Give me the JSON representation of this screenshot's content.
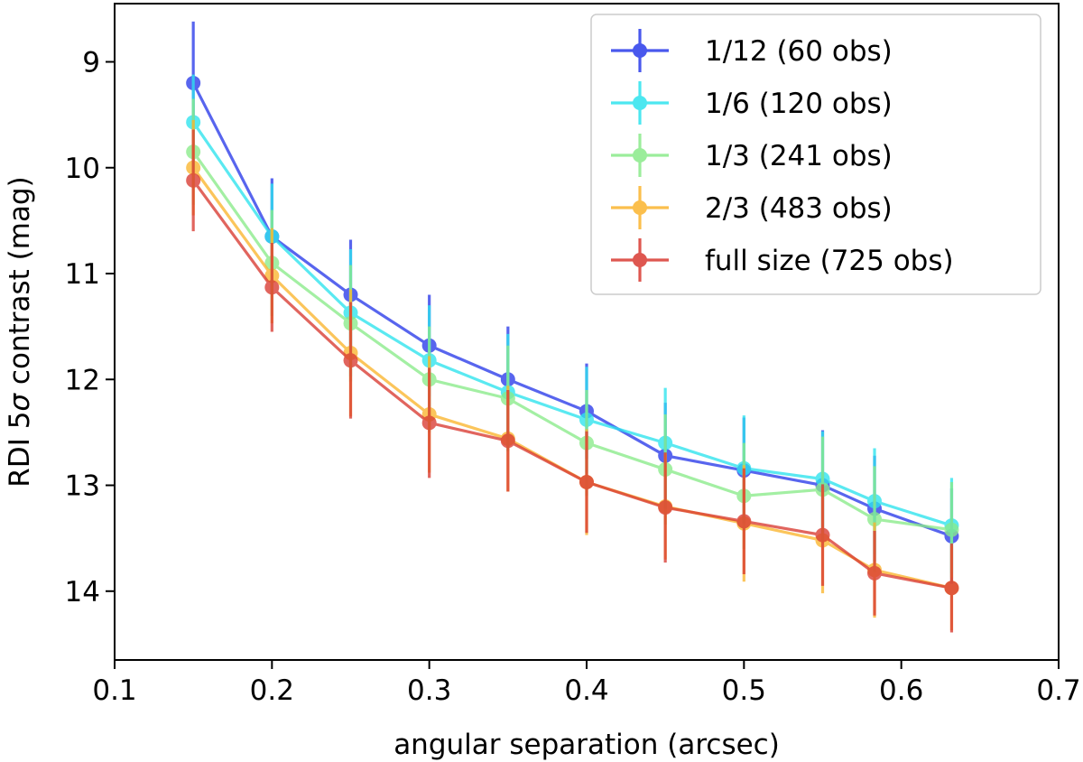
{
  "chart_data": {
    "type": "line",
    "title": "",
    "xlabel": "angular separation (arcsec)",
    "ylabel_prefix": "RDI 5",
    "ylabel_symbol": "σ",
    "ylabel_suffix": " contrast (mag)",
    "xlim": [
      0.1,
      0.7
    ],
    "ylim": [
      14.65,
      8.45
    ],
    "y_inverted": true,
    "grid": false,
    "legend_position": "top-right",
    "xticks": [
      0.1,
      0.2,
      0.3,
      0.4,
      0.5,
      0.6,
      0.7
    ],
    "xtick_labels": [
      "0.1",
      "0.2",
      "0.3",
      "0.4",
      "0.5",
      "0.6",
      "0.7"
    ],
    "yticks": [
      9,
      10,
      11,
      12,
      13,
      14
    ],
    "ytick_labels": [
      "9",
      "10",
      "11",
      "12",
      "13",
      "14"
    ],
    "x": [
      0.15,
      0.2,
      0.25,
      0.3,
      0.35,
      0.4,
      0.45,
      0.5,
      0.55,
      0.583,
      0.632
    ],
    "series": [
      {
        "name": "1/12 (60 obs)",
        "color": "#2a3bea",
        "values": [
          9.2,
          10.65,
          11.2,
          11.68,
          12.0,
          12.3,
          12.72,
          12.86,
          13.0,
          13.22,
          13.48
        ],
        "errors": [
          0.58,
          0.55,
          0.52,
          0.48,
          0.5,
          0.45,
          0.5,
          0.5,
          0.52,
          0.5,
          0.45
        ]
      },
      {
        "name": "1/6 (120 obs)",
        "color": "#2de3ee",
        "values": [
          9.57,
          10.65,
          11.37,
          11.82,
          12.12,
          12.38,
          12.6,
          12.84,
          12.94,
          13.15,
          13.38
        ],
        "errors": [
          0.45,
          0.5,
          0.6,
          0.52,
          0.55,
          0.5,
          0.52,
          0.5,
          0.45,
          0.5,
          0.45
        ]
      },
      {
        "name": "1/3 (241 obs)",
        "color": "#8aeb8a",
        "values": [
          9.85,
          10.9,
          11.47,
          12.0,
          12.18,
          12.6,
          12.85,
          13.1,
          13.04,
          13.32,
          13.42
        ],
        "errors": [
          0.5,
          0.5,
          0.55,
          0.5,
          0.5,
          0.5,
          0.52,
          0.5,
          0.5,
          0.5,
          0.45
        ]
      },
      {
        "name": "2/3 (483 obs)",
        "color": "#fbb52e",
        "values": [
          10.0,
          11.02,
          11.75,
          12.33,
          12.56,
          12.97,
          13.2,
          13.36,
          13.52,
          13.8,
          13.97
        ],
        "errors": [
          0.45,
          0.45,
          0.6,
          0.55,
          0.5,
          0.5,
          0.5,
          0.55,
          0.5,
          0.45,
          0.4
        ]
      },
      {
        "name": "full size (725 obs)",
        "color": "#d93a32",
        "values": [
          10.12,
          11.13,
          11.82,
          12.41,
          12.58,
          12.97,
          13.21,
          13.34,
          13.47,
          13.83,
          13.97
        ],
        "errors": [
          0.48,
          0.42,
          0.55,
          0.52,
          0.48,
          0.48,
          0.52,
          0.5,
          0.48,
          0.4,
          0.42
        ]
      }
    ]
  }
}
